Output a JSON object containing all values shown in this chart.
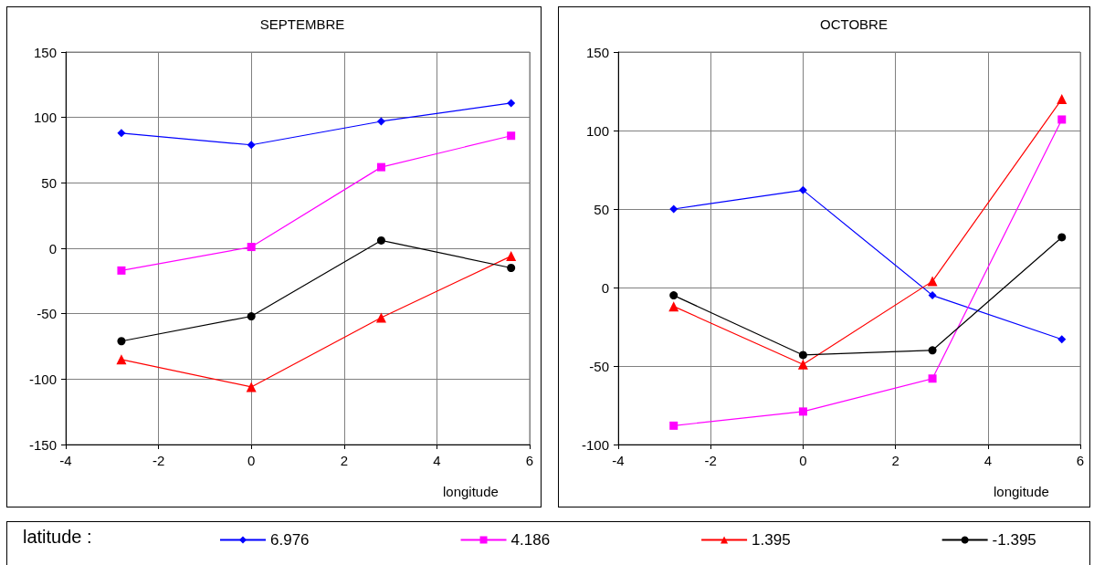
{
  "chart_data": [
    {
      "type": "line",
      "title": "SEPTEMBRE",
      "xlabel": "longitude",
      "xlim": [
        -4,
        6
      ],
      "xticks": [
        -4,
        -2,
        0,
        2,
        4,
        6
      ],
      "ylim": [
        -150,
        150
      ],
      "yticks": [
        -150,
        -100,
        -50,
        0,
        50,
        100,
        150
      ],
      "grid": true,
      "x": [
        -2.8,
        0,
        2.8,
        5.6
      ],
      "series": [
        {
          "color": "#0000ff",
          "marker": "diamond",
          "values": [
            88,
            79,
            97,
            111
          ]
        },
        {
          "color": "#ff00ff",
          "marker": "square",
          "values": [
            -17,
            1,
            62,
            86
          ]
        },
        {
          "color": "#ff0000",
          "marker": "triangle",
          "values": [
            -85,
            -106,
            -53,
            -6
          ]
        },
        {
          "color": "#000000",
          "marker": "circle",
          "values": [
            -71,
            -52,
            6,
            -15
          ]
        }
      ]
    },
    {
      "type": "line",
      "title": "OCTOBRE",
      "xlabel": "longitude",
      "xlim": [
        -4,
        6
      ],
      "xticks": [
        -4,
        -2,
        0,
        2,
        4,
        6
      ],
      "ylim": [
        -100,
        150
      ],
      "yticks": [
        -100,
        -50,
        0,
        50,
        100,
        150
      ],
      "grid": true,
      "legend": "bottom",
      "legend_title": "latitude :",
      "x": [
        -2.8,
        0,
        2.8,
        5.6
      ],
      "series": [
        {
          "name": "6.976",
          "color": "#0000ff",
          "marker": "diamond",
          "values": [
            50,
            62,
            -5,
            -33
          ]
        },
        {
          "name": "4.186",
          "color": "#ff00ff",
          "marker": "square",
          "values": [
            -88,
            -79,
            -58,
            107
          ]
        },
        {
          "name": "1.395",
          "color": "#ff0000",
          "marker": "triangle",
          "values": [
            -12,
            -49,
            4,
            120
          ]
        },
        {
          "name": "-1.395",
          "color": "#000000",
          "marker": "circle",
          "values": [
            -5,
            -43,
            -40,
            32
          ]
        }
      ]
    }
  ]
}
